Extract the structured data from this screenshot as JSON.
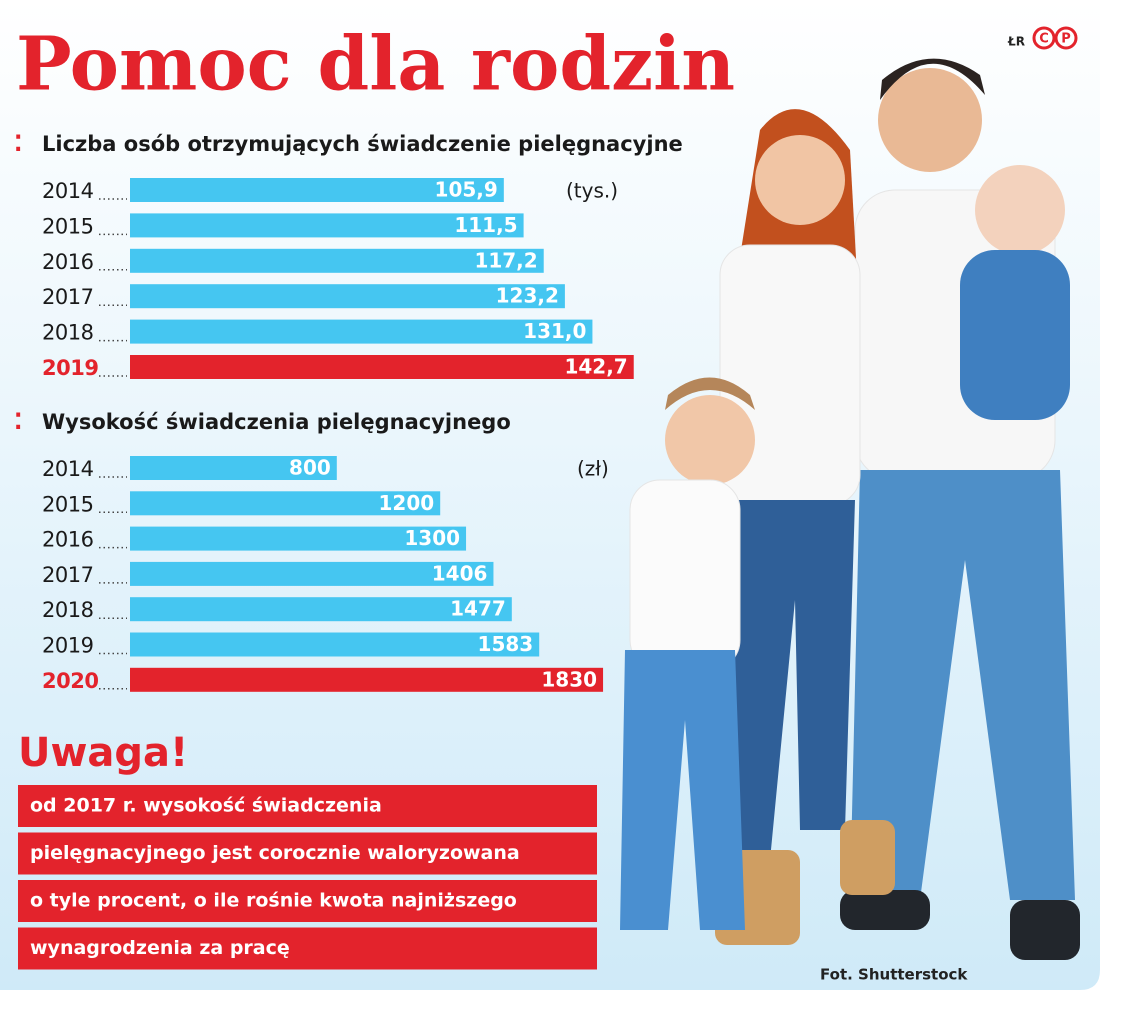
{
  "title": "Pomoc dla rodzin",
  "logo": {
    "text": "ŁR",
    "marks": [
      "C",
      "P"
    ]
  },
  "chart_data": [
    {
      "type": "bar",
      "orientation": "horizontal",
      "title": "Liczba osób otrzymujących świadczenie pielęgnacyjne",
      "unit": "(tys.)",
      "categories": [
        "2014",
        "2015",
        "2016",
        "2017",
        "2018",
        "2019"
      ],
      "values": [
        105.9,
        111.5,
        117.2,
        123.2,
        131.0,
        142.7
      ],
      "value_labels": [
        "105,9",
        "111,5",
        "117,2",
        "123,2",
        "131,0",
        "142,7"
      ],
      "colors": [
        "#45c6f1",
        "#45c6f1",
        "#45c6f1",
        "#45c6f1",
        "#45c6f1",
        "#e3232c"
      ]
    },
    {
      "type": "bar",
      "orientation": "horizontal",
      "title": "Wysokość świadczenia pielęgnacyjnego",
      "unit": "(zł)",
      "categories": [
        "2014",
        "2015",
        "2016",
        "2017",
        "2018",
        "2019",
        "2020"
      ],
      "values": [
        800,
        1200,
        1300,
        1406,
        1477,
        1583,
        1830
      ],
      "colors": [
        "#45c6f1",
        "#45c6f1",
        "#45c6f1",
        "#45c6f1",
        "#45c6f1",
        "#45c6f1",
        "#e3232c"
      ]
    }
  ],
  "note": {
    "heading": "Uwaga!",
    "lines": [
      "od 2017 r. wysokość świadczenia",
      "pielęgnacyjnego jest corocznie waloryzowana",
      "o tyle procent, o ile rośnie kwota najniższego",
      "wynagrodzenia za pracę"
    ]
  },
  "credit": "Fot. Shutterstock"
}
